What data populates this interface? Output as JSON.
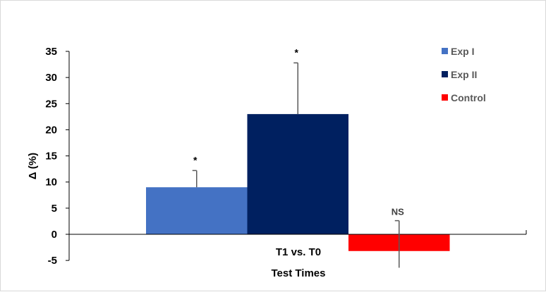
{
  "chart_data": {
    "type": "bar",
    "categories": [
      "T1 vs. T0"
    ],
    "series": [
      {
        "name": "Exp I",
        "color": "#4472C4",
        "value": 9,
        "error": 3.2,
        "annotation": "*"
      },
      {
        "name": "Exp II",
        "color": "#002060",
        "value": 23,
        "error": 9.8,
        "annotation": "*"
      },
      {
        "name": "Control",
        "color": "#FF0000",
        "value": -3.2,
        "error": 5.8,
        "annotation": "NS"
      }
    ],
    "xlabel": "Test Times",
    "ylabel": "Δ (%)",
    "ylim": [
      -5,
      35
    ],
    "yticks": [
      "35",
      "30",
      "25",
      "20",
      "15",
      "10",
      "5",
      "0",
      "-5"
    ],
    "ytick_values": [
      35,
      30,
      25,
      20,
      15,
      10,
      5,
      0,
      -5
    ],
    "grid": false,
    "legend_position": "top-right"
  }
}
